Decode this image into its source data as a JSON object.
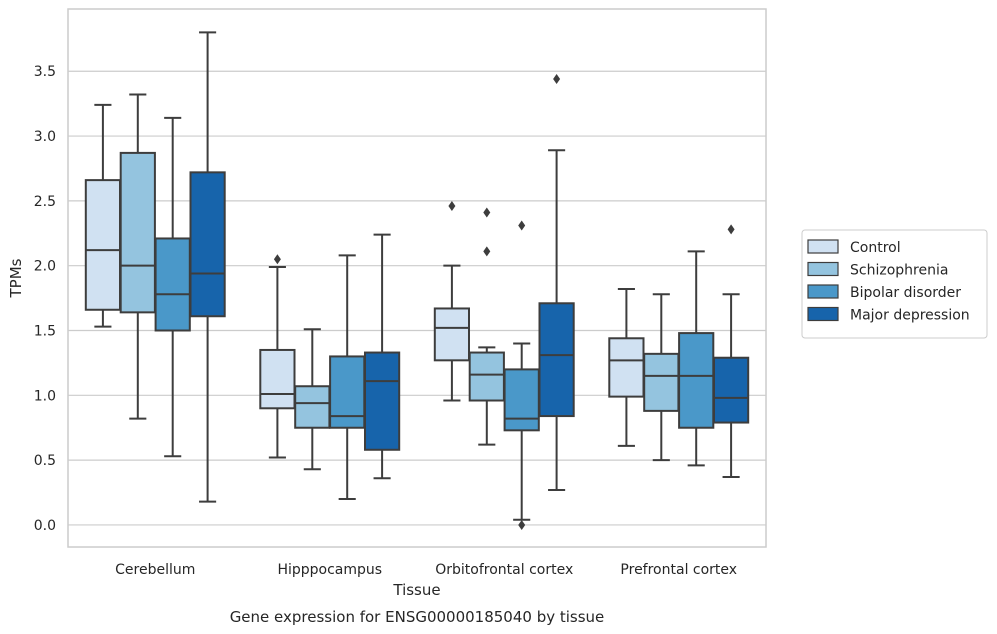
{
  "chart_data": {
    "type": "box",
    "title": "",
    "caption": "Gene expression for ENSG00000185040 by tissue",
    "xlabel": "Tissue",
    "ylabel": "TPMs",
    "ylim": [
      -0.17,
      3.98
    ],
    "yticks": [
      0.0,
      0.5,
      1.0,
      1.5,
      2.0,
      2.5,
      3.0,
      3.5
    ],
    "yticks_labels": [
      "0.0",
      "0.5",
      "1.0",
      "1.5",
      "2.0",
      "2.5",
      "3.0",
      "3.5"
    ],
    "grid": "y",
    "legend_position": "right",
    "categories": [
      "Cerebellum",
      "Hipppocampus",
      "Orbitofrontal cortex",
      "Prefrontal cortex"
    ],
    "series": [
      {
        "name": "Control",
        "color": "#d0e1f2",
        "boxes": [
          {
            "whislo": 1.53,
            "q1": 1.66,
            "med": 2.12,
            "q3": 2.66,
            "whishi": 3.24,
            "fliers": []
          },
          {
            "whislo": 0.52,
            "q1": 0.9,
            "med": 1.01,
            "q3": 1.35,
            "whishi": 1.99,
            "fliers": [
              2.05
            ]
          },
          {
            "whislo": 0.96,
            "q1": 1.27,
            "med": 1.52,
            "q3": 1.67,
            "whishi": 2.0,
            "fliers": [
              2.46
            ]
          },
          {
            "whislo": 0.61,
            "q1": 0.99,
            "med": 1.27,
            "q3": 1.44,
            "whishi": 1.82,
            "fliers": []
          }
        ]
      },
      {
        "name": "Schizophrenia",
        "color": "#94c4df",
        "boxes": [
          {
            "whislo": 0.82,
            "q1": 1.64,
            "med": 2.0,
            "q3": 2.87,
            "whishi": 3.32,
            "fliers": []
          },
          {
            "whislo": 0.43,
            "q1": 0.75,
            "med": 0.94,
            "q3": 1.07,
            "whishi": 1.51,
            "fliers": []
          },
          {
            "whislo": 0.62,
            "q1": 0.96,
            "med": 1.16,
            "q3": 1.33,
            "whishi": 1.37,
            "fliers": [
              2.11,
              2.41
            ]
          },
          {
            "whislo": 0.5,
            "q1": 0.88,
            "med": 1.15,
            "q3": 1.32,
            "whishi": 1.78,
            "fliers": []
          }
        ]
      },
      {
        "name": "Bipolar disorder",
        "color": "#4a98c9",
        "boxes": [
          {
            "whislo": 0.53,
            "q1": 1.5,
            "med": 1.78,
            "q3": 2.21,
            "whishi": 3.14,
            "fliers": []
          },
          {
            "whislo": 0.2,
            "q1": 0.75,
            "med": 0.84,
            "q3": 1.3,
            "whishi": 2.08,
            "fliers": []
          },
          {
            "whislo": 0.04,
            "q1": 0.73,
            "med": 0.82,
            "q3": 1.2,
            "whishi": 1.4,
            "fliers": [
              0.0,
              2.31
            ]
          },
          {
            "whislo": 0.46,
            "q1": 0.75,
            "med": 1.15,
            "q3": 1.48,
            "whishi": 2.11,
            "fliers": []
          }
        ]
      },
      {
        "name": "Major depression",
        "color": "#1764ab",
        "boxes": [
          {
            "whislo": 0.18,
            "q1": 1.61,
            "med": 1.94,
            "q3": 2.72,
            "whishi": 3.8,
            "fliers": []
          },
          {
            "whislo": 0.36,
            "q1": 0.58,
            "med": 1.11,
            "q3": 1.33,
            "whishi": 2.24,
            "fliers": []
          },
          {
            "whislo": 0.27,
            "q1": 0.84,
            "med": 1.31,
            "q3": 1.71,
            "whishi": 2.89,
            "fliers": [
              3.44
            ]
          },
          {
            "whislo": 0.37,
            "q1": 0.79,
            "med": 0.98,
            "q3": 1.29,
            "whishi": 1.78,
            "fliers": [
              2.28
            ]
          }
        ]
      }
    ]
  }
}
